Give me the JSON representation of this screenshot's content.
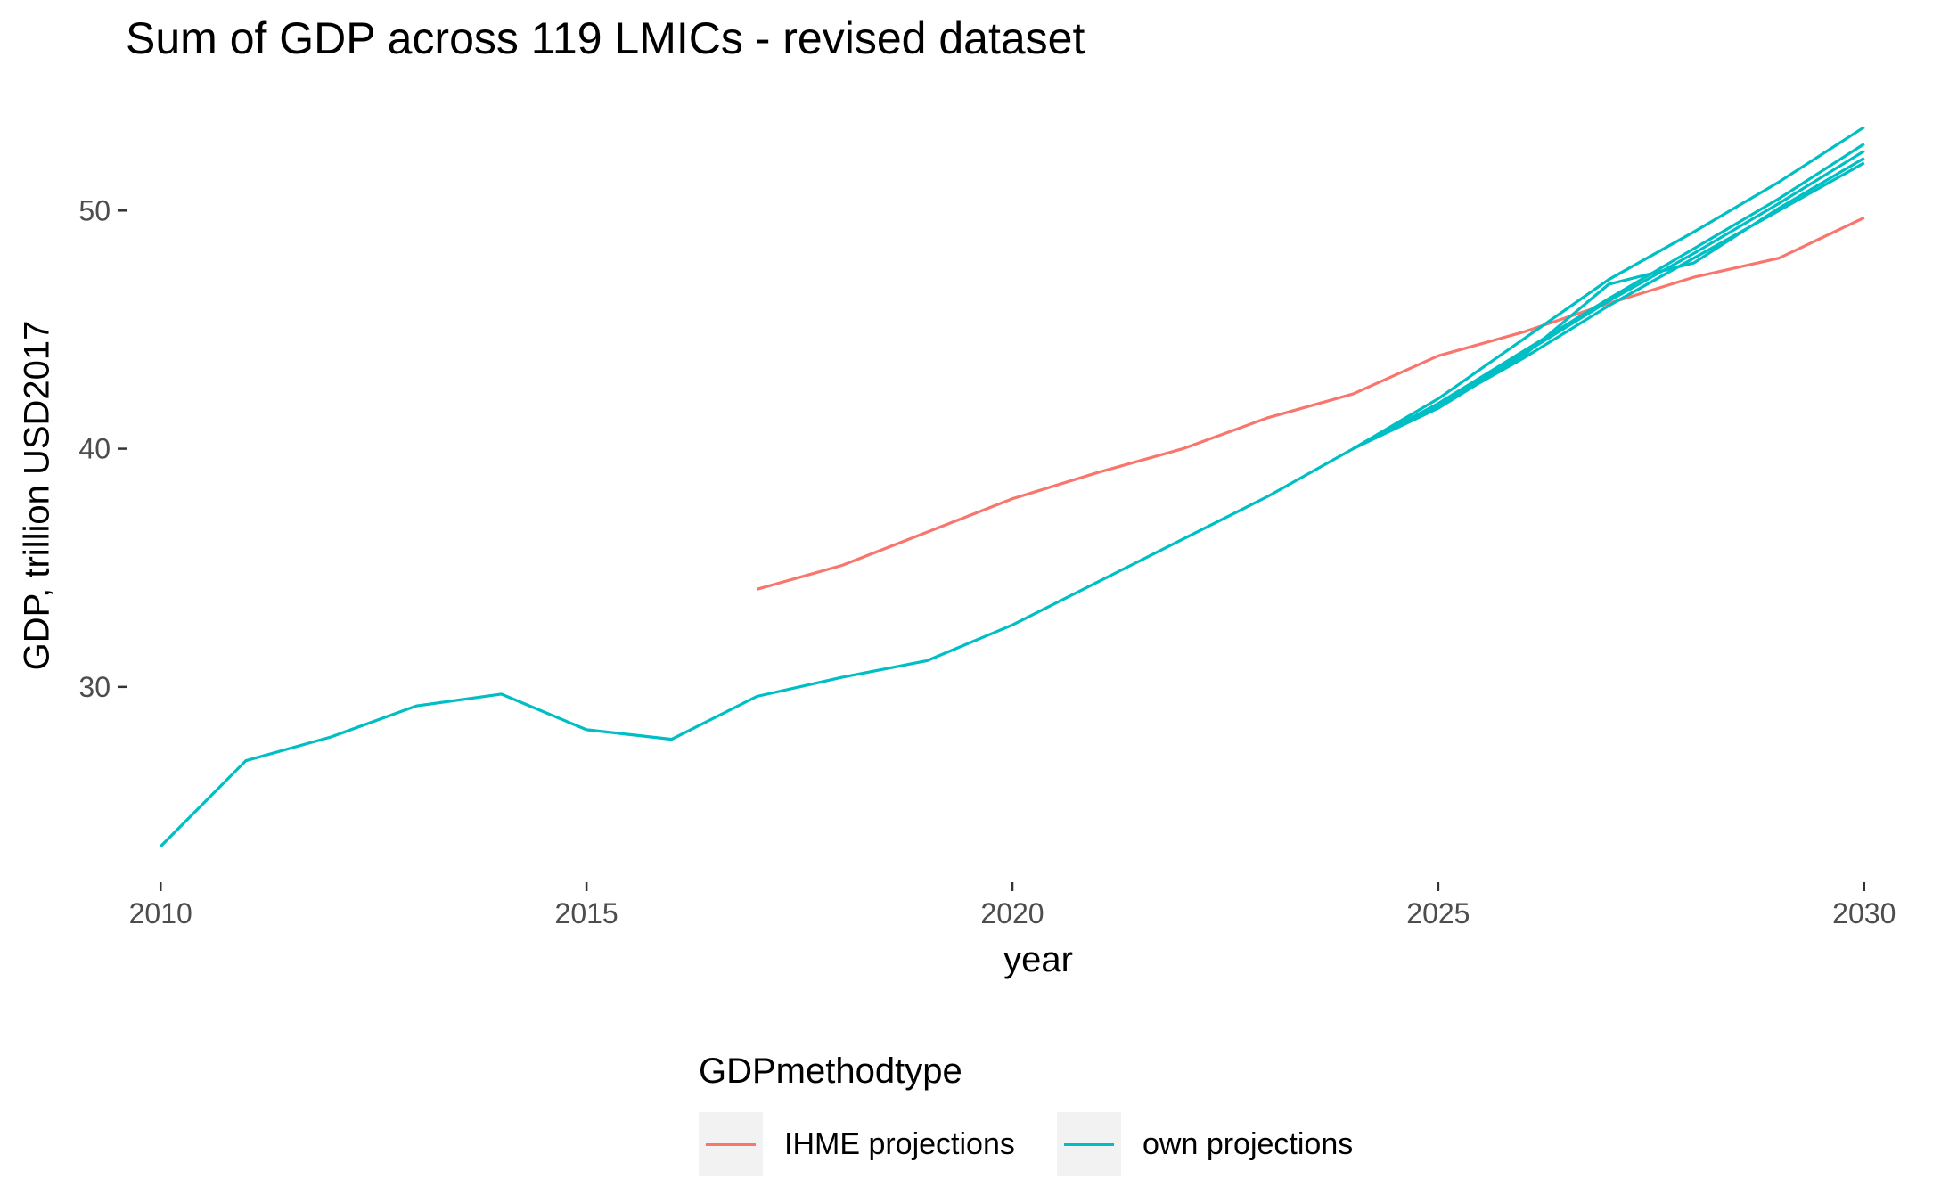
{
  "chart_data": {
    "type": "line",
    "title": "Sum of GDP across 119 LMICs - revised dataset",
    "xlabel": "year",
    "ylabel": "GDP, trillion USD2017",
    "xlim": [
      2009.6,
      2030.4
    ],
    "ylim": [
      21.8,
      54.8
    ],
    "x_ticks": [
      2010,
      2015,
      2020,
      2025,
      2030
    ],
    "y_ticks": [
      30,
      40,
      50
    ],
    "grid": false,
    "legend": {
      "title": "GDPmethodtype",
      "position": "bottom",
      "entries": [
        {
          "label": "IHME projections",
          "color": "#F8766D"
        },
        {
          "label": "own projections",
          "color": "#00BFC4"
        }
      ]
    },
    "series": [
      {
        "name": "IHME projections",
        "color": "#F8766D",
        "x": [
          2017,
          2018,
          2019,
          2020,
          2021,
          2022,
          2023,
          2024,
          2025,
          2026,
          2027,
          2028,
          2029,
          2030
        ],
        "values": [
          34.1,
          35.1,
          36.5,
          37.9,
          39.0,
          40.0,
          41.3,
          42.3,
          43.9,
          44.9,
          46.1,
          47.2,
          48.0,
          49.7
        ]
      },
      {
        "name": "own projections",
        "color": "#00BFC4",
        "x": [
          2010,
          2011,
          2012,
          2013,
          2014,
          2015,
          2016,
          2017,
          2018,
          2019,
          2020,
          2021,
          2022,
          2023,
          2024,
          2025,
          2026,
          2027,
          2028,
          2029,
          2030
        ],
        "values": [
          23.3,
          26.9,
          27.9,
          29.2,
          29.7,
          28.2,
          27.8,
          29.6,
          30.4,
          31.1,
          32.6,
          34.4,
          36.2,
          38.0,
          40.0,
          42.1,
          44.6,
          47.1,
          49.1,
          51.2,
          53.5
        ]
      },
      {
        "name": "own projections",
        "color": "#00BFC4",
        "x": [
          2024,
          2025,
          2026,
          2027,
          2028,
          2029,
          2030
        ],
        "values": [
          40.0,
          41.9,
          44.1,
          46.3,
          48.4,
          50.5,
          52.8
        ]
      },
      {
        "name": "own projections",
        "color": "#00BFC4",
        "x": [
          2024,
          2025,
          2026,
          2027,
          2028,
          2029,
          2030
        ],
        "values": [
          40.0,
          41.8,
          44.0,
          46.2,
          48.2,
          50.3,
          52.5
        ]
      },
      {
        "name": "own projections",
        "color": "#00BFC4",
        "x": [
          2024,
          2025,
          2026,
          2027,
          2028,
          2029,
          2030
        ],
        "values": [
          40.0,
          41.7,
          43.9,
          46.9,
          47.8,
          50.1,
          52.2
        ]
      },
      {
        "name": "own projections",
        "color": "#00BFC4",
        "x": [
          2024,
          2025,
          2026,
          2027,
          2028,
          2029,
          2030
        ],
        "values": [
          40.0,
          41.8,
          43.8,
          46.0,
          48.0,
          50.0,
          52.0
        ]
      }
    ]
  }
}
